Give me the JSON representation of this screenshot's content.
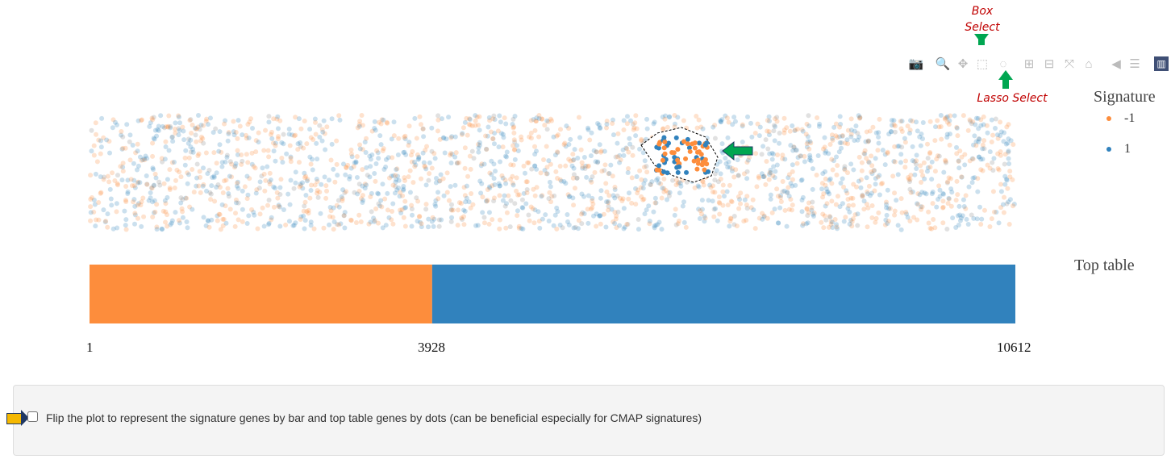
{
  "annotations": {
    "box_select": "Box Select",
    "lasso_select": "Lasso Select"
  },
  "toolbar": [
    {
      "name": "camera-icon",
      "glyph": "📷"
    },
    {
      "name": "zoom-icon",
      "glyph": "🔍"
    },
    {
      "name": "pan-icon",
      "glyph": "✥"
    },
    {
      "name": "box-select-icon",
      "glyph": "⬚"
    },
    {
      "name": "lasso-select-icon",
      "glyph": "◌"
    },
    {
      "name": "zoom-in-icon",
      "glyph": "⊞"
    },
    {
      "name": "zoom-out-icon",
      "glyph": "⊟"
    },
    {
      "name": "autoscale-icon",
      "glyph": "⤧"
    },
    {
      "name": "reset-axes-icon",
      "glyph": "⌂"
    },
    {
      "name": "hover-closest-icon",
      "glyph": "◀"
    },
    {
      "name": "hover-compare-icon",
      "glyph": "☰"
    },
    {
      "name": "plotly-logo-icon",
      "glyph": "▥"
    }
  ],
  "legend": {
    "title": "Signature",
    "items": [
      {
        "label": "-1",
        "color": "#fd8d3c"
      },
      {
        "label": "1",
        "color": "#3182bd"
      }
    ]
  },
  "bar_label": "Top table",
  "chart_data": {
    "type": "bar",
    "title": "",
    "scatter": {
      "series": [
        {
          "name": "-1",
          "color": "#fd8d3c"
        },
        {
          "name": "1",
          "color": "#3182bd"
        }
      ],
      "selection": "lasso"
    },
    "bar": {
      "segments": [
        {
          "start": 1,
          "end": 3928,
          "color": "#fd8d3c"
        },
        {
          "start": 3928,
          "end": 10612,
          "color": "#3182bd"
        }
      ]
    },
    "xlim": [
      1,
      10612
    ],
    "ticks": [
      "1",
      "3928",
      "10612"
    ]
  },
  "options": {
    "flip_label": "Flip the plot to represent the signature genes by bar and top table genes by dots (can be beneficial especially for CMAP signatures)",
    "flip_checked": false
  }
}
